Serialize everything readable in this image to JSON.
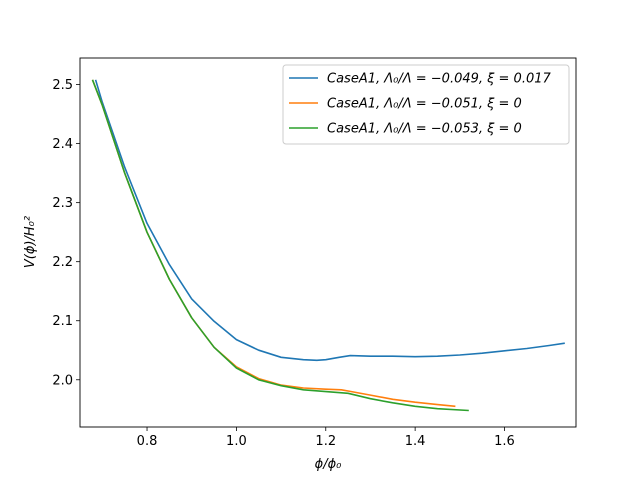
{
  "chart_data": {
    "type": "line",
    "title": "",
    "xlabel": "ϕ/ϕ₀",
    "ylabel": "V(ϕ)/H₀²",
    "xlim": [
      0.65,
      1.76
    ],
    "ylim": [
      1.92,
      2.545
    ],
    "xticks": [
      0.8,
      1.0,
      1.2,
      1.4,
      1.6
    ],
    "xtick_labels": [
      "0.8",
      "1.0",
      "1.2",
      "1.4",
      "1.6"
    ],
    "yticks": [
      2.0,
      2.1,
      2.2,
      2.3,
      2.4,
      2.5
    ],
    "ytick_labels": [
      "2.0",
      "2.1",
      "2.2",
      "2.3",
      "2.4",
      "2.5"
    ],
    "grid": false,
    "legend_position": "top-right",
    "series": [
      {
        "name": "CaseA1, Λ₀/Λ = −0.049, ξ = 0.017",
        "color": "#1f77b4",
        "x": [
          0.685,
          0.7,
          0.75,
          0.8,
          0.85,
          0.9,
          0.95,
          1.0,
          1.05,
          1.1,
          1.15,
          1.18,
          1.2,
          1.23,
          1.255,
          1.3,
          1.35,
          1.4,
          1.45,
          1.5,
          1.55,
          1.6,
          1.65,
          1.7,
          1.735
        ],
        "y": [
          2.508,
          2.47,
          2.36,
          2.265,
          2.195,
          2.137,
          2.099,
          2.068,
          2.05,
          2.038,
          2.034,
          2.033,
          2.034,
          2.038,
          2.041,
          2.04,
          2.04,
          2.039,
          2.04,
          2.042,
          2.045,
          2.049,
          2.053,
          2.058,
          2.062
        ]
      },
      {
        "name": "CaseA1, Λ₀/Λ = −0.051, ξ = 0",
        "color": "#ff7f0e",
        "x": [
          0.678,
          0.7,
          0.75,
          0.8,
          0.85,
          0.9,
          0.95,
          1.0,
          1.05,
          1.1,
          1.15,
          1.2,
          1.235,
          1.25,
          1.3,
          1.35,
          1.4,
          1.45,
          1.49
        ],
        "y": [
          2.508,
          2.465,
          2.35,
          2.25,
          2.17,
          2.105,
          2.055,
          2.022,
          2.002,
          1.991,
          1.986,
          1.984,
          1.983,
          1.981,
          1.974,
          1.967,
          1.962,
          1.958,
          1.955
        ]
      },
      {
        "name": "CaseA1, Λ₀/Λ = −0.053, ξ = 0",
        "color": "#2ca02c",
        "x": [
          0.678,
          0.7,
          0.75,
          0.8,
          0.85,
          0.9,
          0.95,
          1.0,
          1.05,
          1.1,
          1.15,
          1.2,
          1.25,
          1.3,
          1.35,
          1.4,
          1.45,
          1.52
        ],
        "y": [
          2.508,
          2.465,
          2.35,
          2.25,
          2.17,
          2.105,
          2.055,
          2.02,
          2.0,
          1.99,
          1.983,
          1.98,
          1.977,
          1.968,
          1.961,
          1.955,
          1.951,
          1.948
        ]
      }
    ]
  }
}
